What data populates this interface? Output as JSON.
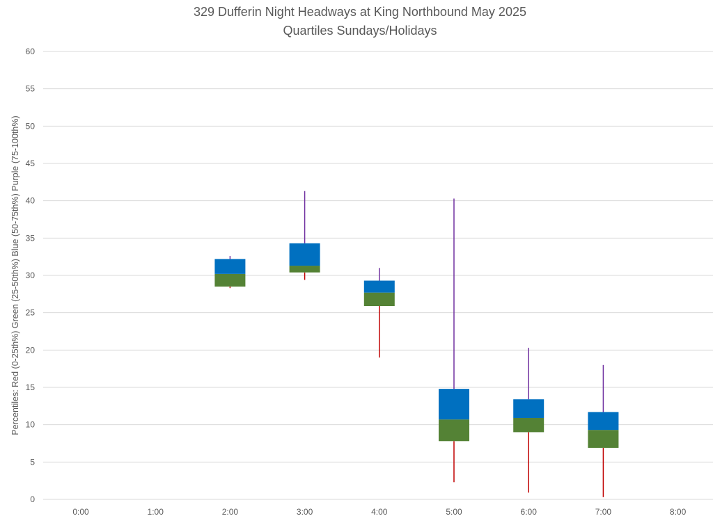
{
  "chart_data": {
    "type": "box",
    "title_lines": [
      "329 Dufferin Night Headways at King Northbound May 2025",
      "Quartiles Sundays/Holidays"
    ],
    "ylabel": "Percentiles:  Red (0-25th%)  Green (25-50th%)  Blue (50-75th%)  Purple (75-100th%)",
    "xlabel": "",
    "ylim": [
      0,
      60
    ],
    "yticks": [
      0,
      5,
      10,
      15,
      20,
      25,
      30,
      35,
      40,
      45,
      50,
      55,
      60
    ],
    "categories": [
      "0:00",
      "1:00",
      "2:00",
      "3:00",
      "4:00",
      "5:00",
      "6:00",
      "7:00",
      "8:00"
    ],
    "grid": true,
    "colors": {
      "min_to_q1": "#c00000",
      "q1_to_median": "#548235",
      "median_to_q3": "#0070c0",
      "q3_to_max": "#7030a0"
    },
    "boxes": [
      {
        "hour": "2:00",
        "min": 28.3,
        "q1": 28.5,
        "median": 30.2,
        "q3": 32.2,
        "max": 32.6
      },
      {
        "hour": "3:00",
        "min": 29.4,
        "q1": 30.4,
        "median": 31.3,
        "q3": 34.3,
        "max": 41.3
      },
      {
        "hour": "4:00",
        "min": 19.0,
        "q1": 25.9,
        "median": 27.7,
        "q3": 29.3,
        "max": 31.0
      },
      {
        "hour": "5:00",
        "min": 2.3,
        "q1": 7.8,
        "median": 10.7,
        "q3": 14.8,
        "max": 40.3
      },
      {
        "hour": "6:00",
        "min": 0.9,
        "q1": 9.0,
        "median": 10.9,
        "q3": 13.4,
        "max": 20.3
      },
      {
        "hour": "7:00",
        "min": 0.3,
        "q1": 6.9,
        "median": 9.3,
        "q3": 11.7,
        "max": 18.0
      }
    ]
  }
}
